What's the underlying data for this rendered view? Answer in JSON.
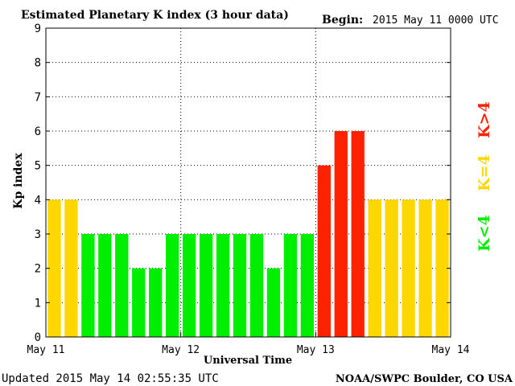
{
  "header": {
    "title": "Estimated Planetary K index (3 hour data)",
    "begin_label": "Begin:",
    "begin_value": "2015 May 11 0000 UTC"
  },
  "footer": {
    "updated": "Updated 2015 May 14 02:55:35 UTC",
    "credit": "NOAA/SWPC Boulder, CO USA"
  },
  "legend": {
    "high": "K>4",
    "equal": "K=4",
    "low": "K<4"
  },
  "colors": {
    "low": "#00ee00",
    "equal": "#ffd700",
    "high": "#ff2200"
  },
  "chart_data": {
    "type": "bar",
    "title": "Estimated Planetary K index (3 hour data)",
    "xlabel": "Universal Time",
    "ylabel": "Kp index",
    "ylim": [
      0,
      9
    ],
    "y_ticks": [
      "0",
      "1",
      "2",
      "3",
      "4",
      "5",
      "6",
      "7",
      "8",
      "9"
    ],
    "x_ticks": [
      "May 11",
      "May 12",
      "May 13",
      "May 14"
    ],
    "grid": true,
    "bar_interval_hours": 3,
    "values": [
      4,
      4,
      3,
      3,
      3,
      2,
      2,
      3,
      3,
      3,
      3,
      3,
      3,
      2,
      3,
      3,
      5,
      6,
      6,
      4,
      4,
      4,
      4,
      4
    ]
  }
}
